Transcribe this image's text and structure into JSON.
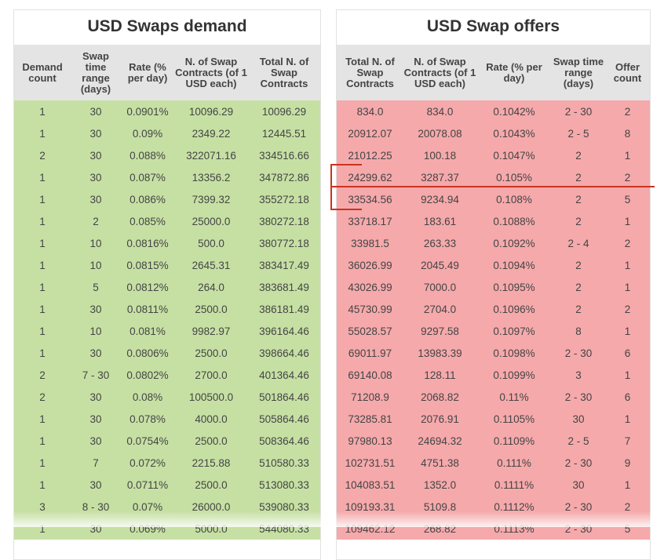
{
  "demand": {
    "title": "USD Swaps demand",
    "headers": [
      "Demand count",
      "Swap time range (days)",
      "Rate (% per day)",
      "N. of Swap Contracts (of 1 USD each)",
      "Total N. of Swap Contracts"
    ],
    "rows": [
      [
        "1",
        "30",
        "0.0901%",
        "10096.29",
        "10096.29"
      ],
      [
        "1",
        "30",
        "0.09%",
        "2349.22",
        "12445.51"
      ],
      [
        "2",
        "30",
        "0.088%",
        "322071.16",
        "334516.66"
      ],
      [
        "1",
        "30",
        "0.087%",
        "13356.2",
        "347872.86"
      ],
      [
        "1",
        "30",
        "0.086%",
        "7399.32",
        "355272.18"
      ],
      [
        "1",
        "2",
        "0.085%",
        "25000.0",
        "380272.18"
      ],
      [
        "1",
        "10",
        "0.0816%",
        "500.0",
        "380772.18"
      ],
      [
        "1",
        "10",
        "0.0815%",
        "2645.31",
        "383417.49"
      ],
      [
        "1",
        "5",
        "0.0812%",
        "264.0",
        "383681.49"
      ],
      [
        "1",
        "30",
        "0.0811%",
        "2500.0",
        "386181.49"
      ],
      [
        "1",
        "10",
        "0.081%",
        "9982.97",
        "396164.46"
      ],
      [
        "1",
        "30",
        "0.0806%",
        "2500.0",
        "398664.46"
      ],
      [
        "2",
        "7 - 30",
        "0.0802%",
        "2700.0",
        "401364.46"
      ],
      [
        "2",
        "30",
        "0.08%",
        "100500.0",
        "501864.46"
      ],
      [
        "1",
        "30",
        "0.078%",
        "4000.0",
        "505864.46"
      ],
      [
        "1",
        "30",
        "0.0754%",
        "2500.0",
        "508364.46"
      ],
      [
        "1",
        "7",
        "0.072%",
        "2215.88",
        "510580.33"
      ],
      [
        "1",
        "30",
        "0.0711%",
        "2500.0",
        "513080.33"
      ],
      [
        "3",
        "8 - 30",
        "0.07%",
        "26000.0",
        "539080.33"
      ],
      [
        "1",
        "30",
        "0.069%",
        "5000.0",
        "544080.33"
      ]
    ]
  },
  "offers": {
    "title": "USD Swap offers",
    "headers": [
      "Total N. of Swap Contracts",
      "N. of Swap Contracts (of 1 USD each)",
      "Rate (% per day)",
      "Swap time range (days)",
      "Offer count"
    ],
    "rows": [
      [
        "834.0",
        "834.0",
        "0.1042%",
        "2 - 30",
        "2"
      ],
      [
        "20912.07",
        "20078.08",
        "0.1043%",
        "2 - 5",
        "8"
      ],
      [
        "21012.25",
        "100.18",
        "0.1047%",
        "2",
        "1"
      ],
      [
        "24299.62",
        "3287.37",
        "0.105%",
        "2",
        "2"
      ],
      [
        "33534.56",
        "9234.94",
        "0.108%",
        "2",
        "5"
      ],
      [
        "33718.17",
        "183.61",
        "0.1088%",
        "2",
        "1"
      ],
      [
        "33981.5",
        "263.33",
        "0.1092%",
        "2 - 4",
        "2"
      ],
      [
        "36026.99",
        "2045.49",
        "0.1094%",
        "2",
        "1"
      ],
      [
        "43026.99",
        "7000.0",
        "0.1095%",
        "2",
        "1"
      ],
      [
        "45730.99",
        "2704.0",
        "0.1096%",
        "2",
        "2"
      ],
      [
        "55028.57",
        "9297.58",
        "0.1097%",
        "8",
        "1"
      ],
      [
        "69011.97",
        "13983.39",
        "0.1098%",
        "2 - 30",
        "6"
      ],
      [
        "69140.08",
        "128.11",
        "0.1099%",
        "3",
        "1"
      ],
      [
        "71208.9",
        "2068.82",
        "0.11%",
        "2 - 30",
        "6"
      ],
      [
        "73285.81",
        "2076.91",
        "0.1105%",
        "30",
        "1"
      ],
      [
        "97980.13",
        "24694.32",
        "0.1109%",
        "2 - 5",
        "7"
      ],
      [
        "102731.51",
        "4751.38",
        "0.111%",
        "2 - 30",
        "9"
      ],
      [
        "104083.51",
        "1352.0",
        "0.1111%",
        "30",
        "1"
      ],
      [
        "109193.31",
        "5109.8",
        "0.1112%",
        "2 - 30",
        "2"
      ],
      [
        "109462.12",
        "268.82",
        "0.1113%",
        "2 - 30",
        "5"
      ]
    ]
  },
  "colors": {
    "demand_rows": "#c6e0a4",
    "offer_rows": "#f5a9ab",
    "header_bg": "#e4e4e4",
    "annotation": "#c8341f"
  }
}
